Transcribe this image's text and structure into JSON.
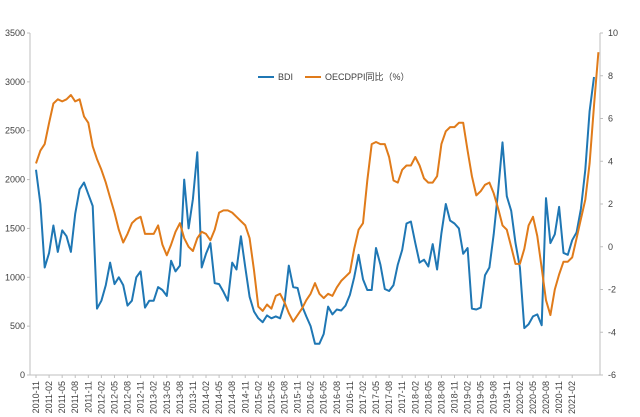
{
  "chart_data": {
    "type": "line",
    "title": "",
    "xlabel": "",
    "ylabel": "",
    "y_left_lim": [
      0,
      3500
    ],
    "y_left_ticks": [
      0,
      500,
      1000,
      1500,
      2000,
      2500,
      3000,
      3500
    ],
    "y_right_lim": [
      -6,
      10
    ],
    "y_right_ticks": [
      -6,
      -4,
      -2,
      0,
      2,
      4,
      6,
      8,
      10
    ],
    "grid": false,
    "legend_position": "top-center",
    "x_tick_labels": [
      "2010-11",
      "2011-02",
      "2011-05",
      "2011-08",
      "2011-11",
      "2012-02",
      "2012-05",
      "2012-08",
      "2012-11",
      "2013-02",
      "2013-05",
      "2013-08",
      "2013-11",
      "2014-02",
      "2014-05",
      "2014-08",
      "2014-11",
      "2015-02",
      "2015-05",
      "2015-08",
      "2015-11",
      "2016-02",
      "2016-05",
      "2016-08",
      "2016-11",
      "2017-02",
      "2017-05",
      "2017-08",
      "2017-11",
      "2018-02",
      "2018-05",
      "2018-08",
      "2018-11",
      "2019-02",
      "2019-05",
      "2019-08",
      "2019-11",
      "2020-02",
      "2020-05",
      "2020-08",
      "2020-11",
      "2021-02"
    ],
    "series": [
      {
        "name": "BDI",
        "axis": "left",
        "color": "#1f77b4",
        "values": [
          2100,
          1750,
          1100,
          1250,
          1530,
          1260,
          1480,
          1420,
          1260,
          1650,
          1900,
          1970,
          1850,
          1730,
          680,
          760,
          920,
          1150,
          930,
          1000,
          920,
          710,
          760,
          1000,
          1060,
          690,
          760,
          760,
          900,
          870,
          810,
          1170,
          1060,
          1120,
          2000,
          1500,
          1800,
          2280,
          1100,
          1240,
          1350,
          940,
          930,
          850,
          760,
          1150,
          1080,
          1420,
          1100,
          800,
          650,
          580,
          540,
          610,
          580,
          600,
          580,
          730,
          1120,
          900,
          890,
          710,
          600,
          500,
          320,
          320,
          420,
          700,
          620,
          670,
          660,
          710,
          820,
          1000,
          1230,
          980,
          870,
          870,
          1300,
          1130,
          880,
          860,
          920,
          1130,
          1280,
          1550,
          1570,
          1350,
          1150,
          1180,
          1110,
          1340,
          1080,
          1450,
          1750,
          1580,
          1550,
          1500,
          1240,
          1300,
          680,
          670,
          690,
          1020,
          1100,
          1440,
          1880,
          2380,
          1830,
          1680,
          1350,
          1100,
          480,
          520,
          600,
          620,
          510,
          1810,
          1350,
          1440,
          1720,
          1250,
          1230,
          1380,
          1460,
          1700,
          2100,
          2700,
          3050
        ]
      },
      {
        "name": "OECDPPI同比（%）",
        "axis": "right",
        "color": "#e07b1a",
        "values": [
          3.9,
          4.5,
          4.8,
          5.8,
          6.7,
          6.9,
          6.8,
          6.9,
          7.1,
          6.8,
          6.9,
          6.1,
          5.8,
          4.7,
          4.1,
          3.6,
          3.0,
          2.3,
          1.6,
          0.8,
          0.2,
          0.6,
          1.1,
          1.3,
          1.4,
          0.6,
          0.6,
          0.6,
          1.0,
          0.1,
          -0.4,
          0.1,
          0.7,
          1.1,
          0.4,
          0.0,
          -0.2,
          0.4,
          0.7,
          0.6,
          0.3,
          0.8,
          1.6,
          1.7,
          1.7,
          1.6,
          1.4,
          1.2,
          1.0,
          0.4,
          -1.1,
          -2.8,
          -3.0,
          -2.7,
          -2.9,
          -2.3,
          -2.2,
          -2.6,
          -3.1,
          -3.5,
          -3.2,
          -2.9,
          -2.5,
          -2.2,
          -1.7,
          -2.2,
          -2.4,
          -2.2,
          -2.3,
          -1.9,
          -1.6,
          -1.4,
          -1.2,
          -0.1,
          0.8,
          1.1,
          3.1,
          4.8,
          4.9,
          4.8,
          4.8,
          4.2,
          3.1,
          3.0,
          3.6,
          3.8,
          3.8,
          4.2,
          3.8,
          3.2,
          3.0,
          3.0,
          3.3,
          4.8,
          5.4,
          5.6,
          5.6,
          5.8,
          5.8,
          4.5,
          3.3,
          2.4,
          2.6,
          2.9,
          3.0,
          2.5,
          1.8,
          1.0,
          0.8,
          0.0,
          -0.8,
          -0.8,
          -0.1,
          1.0,
          1.4,
          0.5,
          -1.0,
          -2.5,
          -3.2,
          -2.0,
          -1.3,
          -0.7,
          -0.7,
          -0.5,
          0.4,
          1.3,
          2.2,
          3.9,
          6.6,
          9.1
        ]
      }
    ]
  }
}
